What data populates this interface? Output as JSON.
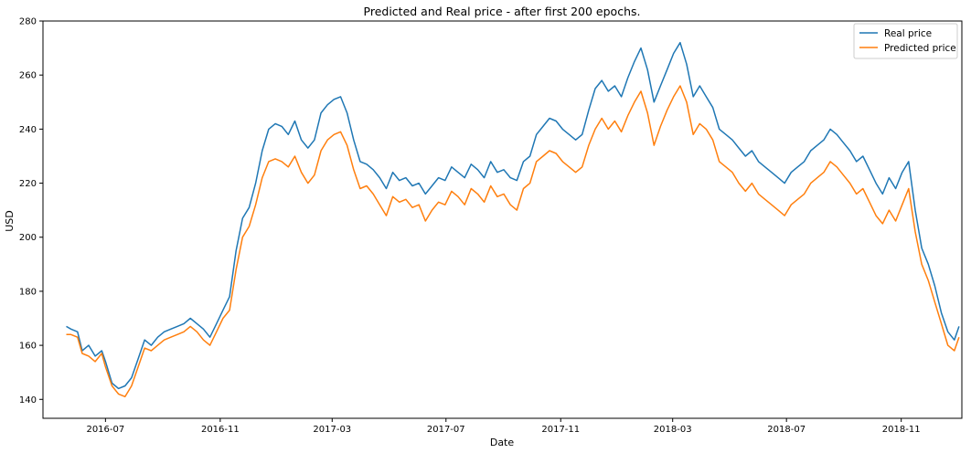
{
  "chart_data": {
    "type": "line",
    "title": "Predicted and Real price - after first 200 epochs.",
    "xlabel": "Date",
    "ylabel": "USD",
    "ylim": [
      133,
      280
    ],
    "xlim": [
      "2016-04-25",
      "2019-01-05"
    ],
    "yticks": [
      140,
      160,
      180,
      200,
      220,
      240,
      260,
      280
    ],
    "xticks": [
      "2016-07",
      "2016-11",
      "2017-03",
      "2017-07",
      "2017-11",
      "2018-03",
      "2018-07",
      "2018-11"
    ],
    "grid": false,
    "legend_position": "top-right",
    "series": [
      {
        "name": "Real price",
        "color": "#1f77b4",
        "points": [
          [
            "2016-05-20",
            167
          ],
          [
            "2016-05-25",
            166
          ],
          [
            "2016-06-01",
            165
          ],
          [
            "2016-06-06",
            158
          ],
          [
            "2016-06-13",
            160
          ],
          [
            "2016-06-20",
            156
          ],
          [
            "2016-06-27",
            158
          ],
          [
            "2016-07-01",
            154
          ],
          [
            "2016-07-08",
            146
          ],
          [
            "2016-07-15",
            144
          ],
          [
            "2016-07-22",
            145
          ],
          [
            "2016-07-29",
            148
          ],
          [
            "2016-08-05",
            155
          ],
          [
            "2016-08-12",
            162
          ],
          [
            "2016-08-19",
            160
          ],
          [
            "2016-08-26",
            163
          ],
          [
            "2016-09-02",
            165
          ],
          [
            "2016-09-09",
            166
          ],
          [
            "2016-09-16",
            167
          ],
          [
            "2016-09-23",
            168
          ],
          [
            "2016-09-30",
            170
          ],
          [
            "2016-10-07",
            168
          ],
          [
            "2016-10-14",
            166
          ],
          [
            "2016-10-21",
            163
          ],
          [
            "2016-10-28",
            168
          ],
          [
            "2016-11-04",
            173
          ],
          [
            "2016-11-11",
            178
          ],
          [
            "2016-11-18",
            195
          ],
          [
            "2016-11-25",
            207
          ],
          [
            "2016-12-02",
            211
          ],
          [
            "2016-12-09",
            220
          ],
          [
            "2016-12-16",
            232
          ],
          [
            "2016-12-23",
            240
          ],
          [
            "2016-12-30",
            242
          ],
          [
            "2017-01-06",
            241
          ],
          [
            "2017-01-13",
            238
          ],
          [
            "2017-01-20",
            243
          ],
          [
            "2017-01-27",
            236
          ],
          [
            "2017-02-03",
            233
          ],
          [
            "2017-02-10",
            236
          ],
          [
            "2017-02-17",
            246
          ],
          [
            "2017-02-24",
            249
          ],
          [
            "2017-03-03",
            251
          ],
          [
            "2017-03-10",
            252
          ],
          [
            "2017-03-17",
            246
          ],
          [
            "2017-03-24",
            236
          ],
          [
            "2017-03-31",
            228
          ],
          [
            "2017-04-07",
            227
          ],
          [
            "2017-04-14",
            225
          ],
          [
            "2017-04-21",
            222
          ],
          [
            "2017-04-28",
            218
          ],
          [
            "2017-05-05",
            224
          ],
          [
            "2017-05-12",
            221
          ],
          [
            "2017-05-19",
            222
          ],
          [
            "2017-05-26",
            219
          ],
          [
            "2017-06-02",
            220
          ],
          [
            "2017-06-09",
            216
          ],
          [
            "2017-06-16",
            219
          ],
          [
            "2017-06-23",
            222
          ],
          [
            "2017-06-30",
            221
          ],
          [
            "2017-07-07",
            226
          ],
          [
            "2017-07-14",
            224
          ],
          [
            "2017-07-21",
            222
          ],
          [
            "2017-07-28",
            227
          ],
          [
            "2017-08-04",
            225
          ],
          [
            "2017-08-11",
            222
          ],
          [
            "2017-08-18",
            228
          ],
          [
            "2017-08-25",
            224
          ],
          [
            "2017-09-01",
            225
          ],
          [
            "2017-09-08",
            222
          ],
          [
            "2017-09-15",
            221
          ],
          [
            "2017-09-22",
            228
          ],
          [
            "2017-09-29",
            230
          ],
          [
            "2017-10-06",
            238
          ],
          [
            "2017-10-13",
            241
          ],
          [
            "2017-10-20",
            244
          ],
          [
            "2017-10-27",
            243
          ],
          [
            "2017-11-03",
            240
          ],
          [
            "2017-11-10",
            238
          ],
          [
            "2017-11-17",
            236
          ],
          [
            "2017-11-24",
            238
          ],
          [
            "2017-12-01",
            247
          ],
          [
            "2017-12-08",
            255
          ],
          [
            "2017-12-15",
            258
          ],
          [
            "2017-12-22",
            254
          ],
          [
            "2017-12-29",
            256
          ],
          [
            "2018-01-05",
            252
          ],
          [
            "2018-01-12",
            259
          ],
          [
            "2018-01-19",
            265
          ],
          [
            "2018-01-26",
            270
          ],
          [
            "2018-02-02",
            262
          ],
          [
            "2018-02-09",
            250
          ],
          [
            "2018-02-16",
            256
          ],
          [
            "2018-02-23",
            262
          ],
          [
            "2018-03-02",
            268
          ],
          [
            "2018-03-09",
            272
          ],
          [
            "2018-03-16",
            264
          ],
          [
            "2018-03-23",
            252
          ],
          [
            "2018-03-30",
            256
          ],
          [
            "2018-04-06",
            252
          ],
          [
            "2018-04-13",
            248
          ],
          [
            "2018-04-20",
            240
          ],
          [
            "2018-04-27",
            238
          ],
          [
            "2018-05-04",
            236
          ],
          [
            "2018-05-11",
            233
          ],
          [
            "2018-05-18",
            230
          ],
          [
            "2018-05-25",
            232
          ],
          [
            "2018-06-01",
            228
          ],
          [
            "2018-06-08",
            226
          ],
          [
            "2018-06-15",
            224
          ],
          [
            "2018-06-22",
            222
          ],
          [
            "2018-06-29",
            220
          ],
          [
            "2018-07-06",
            224
          ],
          [
            "2018-07-13",
            226
          ],
          [
            "2018-07-20",
            228
          ],
          [
            "2018-07-27",
            232
          ],
          [
            "2018-08-03",
            234
          ],
          [
            "2018-08-10",
            236
          ],
          [
            "2018-08-17",
            240
          ],
          [
            "2018-08-24",
            238
          ],
          [
            "2018-08-31",
            235
          ],
          [
            "2018-09-07",
            232
          ],
          [
            "2018-09-14",
            228
          ],
          [
            "2018-09-21",
            230
          ],
          [
            "2018-09-28",
            225
          ],
          [
            "2018-10-05",
            220
          ],
          [
            "2018-10-12",
            216
          ],
          [
            "2018-10-19",
            222
          ],
          [
            "2018-10-26",
            218
          ],
          [
            "2018-11-02",
            224
          ],
          [
            "2018-11-09",
            228
          ],
          [
            "2018-11-16",
            210
          ],
          [
            "2018-11-23",
            196
          ],
          [
            "2018-11-30",
            190
          ],
          [
            "2018-12-07",
            182
          ],
          [
            "2018-12-14",
            172
          ],
          [
            "2018-12-21",
            165
          ],
          [
            "2018-12-28",
            162
          ],
          [
            "2019-01-02",
            167
          ]
        ]
      },
      {
        "name": "Predicted price",
        "color": "#ff7f0e",
        "points": [
          [
            "2016-05-20",
            164
          ],
          [
            "2016-05-25",
            164
          ],
          [
            "2016-06-01",
            163
          ],
          [
            "2016-06-06",
            157
          ],
          [
            "2016-06-13",
            156
          ],
          [
            "2016-06-20",
            154
          ],
          [
            "2016-06-27",
            157
          ],
          [
            "2016-07-01",
            152
          ],
          [
            "2016-07-08",
            145
          ],
          [
            "2016-07-15",
            142
          ],
          [
            "2016-07-22",
            141
          ],
          [
            "2016-07-29",
            145
          ],
          [
            "2016-08-05",
            152
          ],
          [
            "2016-08-12",
            159
          ],
          [
            "2016-08-19",
            158
          ],
          [
            "2016-08-26",
            160
          ],
          [
            "2016-09-02",
            162
          ],
          [
            "2016-09-09",
            163
          ],
          [
            "2016-09-16",
            164
          ],
          [
            "2016-09-23",
            165
          ],
          [
            "2016-09-30",
            167
          ],
          [
            "2016-10-07",
            165
          ],
          [
            "2016-10-14",
            162
          ],
          [
            "2016-10-21",
            160
          ],
          [
            "2016-10-28",
            165
          ],
          [
            "2016-11-04",
            170
          ],
          [
            "2016-11-11",
            173
          ],
          [
            "2016-11-18",
            188
          ],
          [
            "2016-11-25",
            200
          ],
          [
            "2016-12-02",
            204
          ],
          [
            "2016-12-09",
            212
          ],
          [
            "2016-12-16",
            222
          ],
          [
            "2016-12-23",
            228
          ],
          [
            "2016-12-30",
            229
          ],
          [
            "2017-01-06",
            228
          ],
          [
            "2017-01-13",
            226
          ],
          [
            "2017-01-20",
            230
          ],
          [
            "2017-01-27",
            224
          ],
          [
            "2017-02-03",
            220
          ],
          [
            "2017-02-10",
            223
          ],
          [
            "2017-02-17",
            232
          ],
          [
            "2017-02-24",
            236
          ],
          [
            "2017-03-03",
            238
          ],
          [
            "2017-03-10",
            239
          ],
          [
            "2017-03-17",
            234
          ],
          [
            "2017-03-24",
            225
          ],
          [
            "2017-03-31",
            218
          ],
          [
            "2017-04-07",
            219
          ],
          [
            "2017-04-14",
            216
          ],
          [
            "2017-04-21",
            212
          ],
          [
            "2017-04-28",
            208
          ],
          [
            "2017-05-05",
            215
          ],
          [
            "2017-05-12",
            213
          ],
          [
            "2017-05-19",
            214
          ],
          [
            "2017-05-26",
            211
          ],
          [
            "2017-06-02",
            212
          ],
          [
            "2017-06-09",
            206
          ],
          [
            "2017-06-16",
            210
          ],
          [
            "2017-06-23",
            213
          ],
          [
            "2017-06-30",
            212
          ],
          [
            "2017-07-07",
            217
          ],
          [
            "2017-07-14",
            215
          ],
          [
            "2017-07-21",
            212
          ],
          [
            "2017-07-28",
            218
          ],
          [
            "2017-08-04",
            216
          ],
          [
            "2017-08-11",
            213
          ],
          [
            "2017-08-18",
            219
          ],
          [
            "2017-08-25",
            215
          ],
          [
            "2017-09-01",
            216
          ],
          [
            "2017-09-08",
            212
          ],
          [
            "2017-09-15",
            210
          ],
          [
            "2017-09-22",
            218
          ],
          [
            "2017-09-29",
            220
          ],
          [
            "2017-10-06",
            228
          ],
          [
            "2017-10-13",
            230
          ],
          [
            "2017-10-20",
            232
          ],
          [
            "2017-10-27",
            231
          ],
          [
            "2017-11-03",
            228
          ],
          [
            "2017-11-10",
            226
          ],
          [
            "2017-11-17",
            224
          ],
          [
            "2017-11-24",
            226
          ],
          [
            "2017-12-01",
            234
          ],
          [
            "2017-12-08",
            240
          ],
          [
            "2017-12-15",
            244
          ],
          [
            "2017-12-22",
            240
          ],
          [
            "2017-12-29",
            243
          ],
          [
            "2018-01-05",
            239
          ],
          [
            "2018-01-12",
            245
          ],
          [
            "2018-01-19",
            250
          ],
          [
            "2018-01-26",
            254
          ],
          [
            "2018-02-02",
            246
          ],
          [
            "2018-02-09",
            234
          ],
          [
            "2018-02-16",
            241
          ],
          [
            "2018-02-23",
            247
          ],
          [
            "2018-03-02",
            252
          ],
          [
            "2018-03-09",
            256
          ],
          [
            "2018-03-16",
            250
          ],
          [
            "2018-03-23",
            238
          ],
          [
            "2018-03-30",
            242
          ],
          [
            "2018-04-06",
            240
          ],
          [
            "2018-04-13",
            236
          ],
          [
            "2018-04-20",
            228
          ],
          [
            "2018-04-27",
            226
          ],
          [
            "2018-05-04",
            224
          ],
          [
            "2018-05-11",
            220
          ],
          [
            "2018-05-18",
            217
          ],
          [
            "2018-05-25",
            220
          ],
          [
            "2018-06-01",
            216
          ],
          [
            "2018-06-08",
            214
          ],
          [
            "2018-06-15",
            212
          ],
          [
            "2018-06-22",
            210
          ],
          [
            "2018-06-29",
            208
          ],
          [
            "2018-07-06",
            212
          ],
          [
            "2018-07-13",
            214
          ],
          [
            "2018-07-20",
            216
          ],
          [
            "2018-07-27",
            220
          ],
          [
            "2018-08-03",
            222
          ],
          [
            "2018-08-10",
            224
          ],
          [
            "2018-08-17",
            228
          ],
          [
            "2018-08-24",
            226
          ],
          [
            "2018-08-31",
            223
          ],
          [
            "2018-09-07",
            220
          ],
          [
            "2018-09-14",
            216
          ],
          [
            "2018-09-21",
            218
          ],
          [
            "2018-09-28",
            213
          ],
          [
            "2018-10-05",
            208
          ],
          [
            "2018-10-12",
            205
          ],
          [
            "2018-10-19",
            210
          ],
          [
            "2018-10-26",
            206
          ],
          [
            "2018-11-02",
            212
          ],
          [
            "2018-11-09",
            218
          ],
          [
            "2018-11-16",
            202
          ],
          [
            "2018-11-23",
            190
          ],
          [
            "2018-11-30",
            184
          ],
          [
            "2018-12-07",
            176
          ],
          [
            "2018-12-14",
            168
          ],
          [
            "2018-12-21",
            160
          ],
          [
            "2018-12-28",
            158
          ],
          [
            "2019-01-02",
            163
          ]
        ]
      }
    ]
  }
}
